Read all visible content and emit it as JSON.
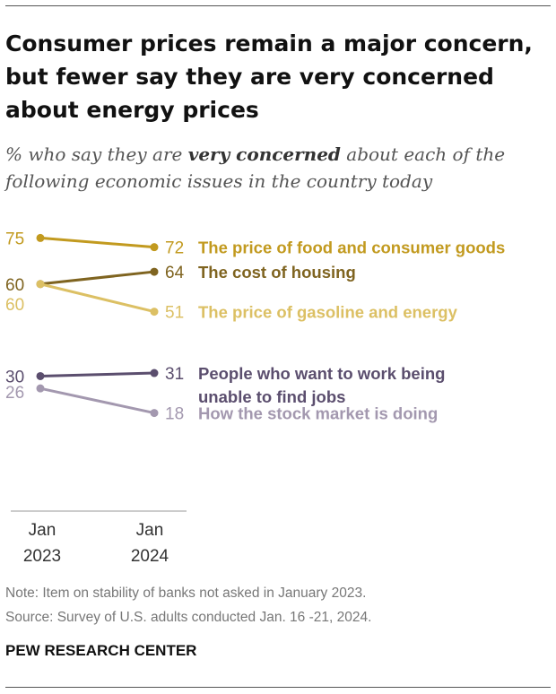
{
  "title": "Consumer prices remain a major concern, but fewer say they are very concerned about energy prices",
  "subtitle": {
    "before": "% who say they are ",
    "emphasis": "very concerned",
    "after": " about each of the following economic issues in the country today"
  },
  "note": "Note: Item on stability of banks not asked in January 2023.",
  "source": "Source: Survey of U.S. adults conducted Jan. 16 -21, 2024.",
  "brand": "PEW RESEARCH CENTER",
  "chart_data": {
    "type": "line",
    "x": [
      {
        "month": "Jan",
        "year": "2023"
      },
      {
        "month": "Jan",
        "year": "2024"
      }
    ],
    "series": [
      {
        "name": "The price of food and consumer goods",
        "lines": [
          "The price of food and consumer goods"
        ],
        "values": [
          75,
          72
        ],
        "color": "#C29A1F"
      },
      {
        "name": "The cost of housing",
        "lines": [
          "The cost of housing"
        ],
        "values": [
          60,
          64
        ],
        "color": "#7F6420"
      },
      {
        "name": "The price of gasoline and energy",
        "lines": [
          "The price of gasoline and energy"
        ],
        "values": [
          60,
          51
        ],
        "color": "#DCC064"
      },
      {
        "name": "People who want to work being unable to find jobs",
        "lines": [
          "People who want to work being",
          "unable to find jobs"
        ],
        "values": [
          30,
          31
        ],
        "color": "#5B4E6E"
      },
      {
        "name": "How the stock market is doing",
        "lines": [
          "How the stock market is doing"
        ],
        "values": [
          26,
          18
        ],
        "color": "#A398AF"
      }
    ]
  }
}
